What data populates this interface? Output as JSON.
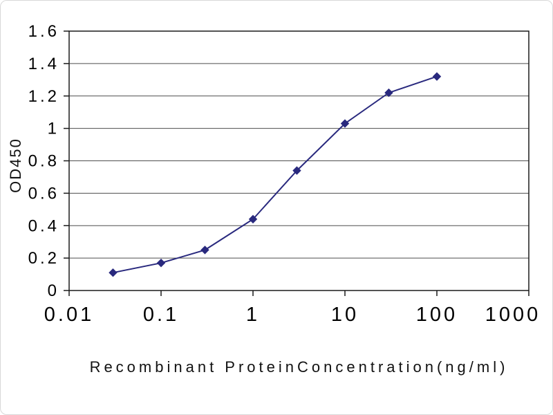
{
  "chart_data": {
    "type": "line",
    "title": "",
    "xlabel": "Recombinant ProteinConcentration(ng/ml)",
    "ylabel": "OD450",
    "x_scale": "log",
    "xlim": [
      0.01,
      1000
    ],
    "ylim": [
      0,
      1.6
    ],
    "x_ticks": [
      0.01,
      0.1,
      1,
      10,
      100,
      1000
    ],
    "y_ticks": [
      0,
      0.2,
      0.4,
      0.6,
      0.8,
      1,
      1.2,
      1.4,
      1.6
    ],
    "x": [
      0.03,
      0.1,
      0.3,
      1,
      3,
      10,
      30,
      100
    ],
    "series": [
      {
        "name": "OD450",
        "values": [
          0.11,
          0.17,
          0.25,
          0.44,
          0.74,
          1.03,
          1.22,
          1.32
        ]
      }
    ],
    "grid": "horizontal",
    "legend": "none",
    "marker": "diamond",
    "line_color": "#29297E",
    "grid_color": "#4D4D4D",
    "axis_color": "#1A1A1A",
    "text_color": "#000000"
  }
}
